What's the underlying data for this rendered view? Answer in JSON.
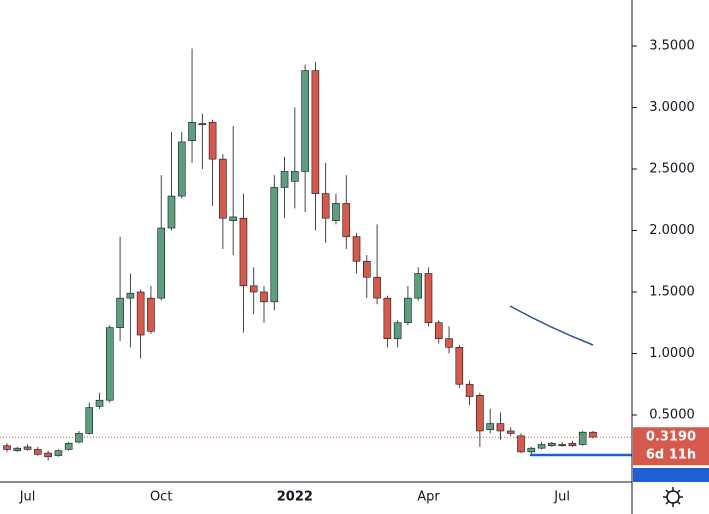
{
  "chart_data": {
    "type": "candlestick",
    "categories": [
      null,
      null,
      "Jul",
      null,
      null,
      null,
      null,
      null,
      null,
      null,
      null,
      null,
      null,
      null,
      null,
      "Oct",
      null,
      null,
      null,
      null,
      null,
      null,
      null,
      null,
      null,
      null,
      null,
      null,
      "2022",
      null,
      null,
      null,
      null,
      null,
      null,
      null,
      null,
      null,
      null,
      null,
      null,
      "Apr",
      null,
      null,
      null,
      null,
      null,
      null,
      null,
      null,
      null,
      null,
      null,
      null,
      "Jul",
      null,
      null,
      null
    ],
    "open": [
      0.25,
      0.21,
      0.24,
      0.22,
      0.19,
      0.17,
      0.22,
      0.28,
      0.35,
      0.57,
      0.62,
      1.21,
      1.45,
      1.5,
      1.45,
      1.45,
      2.02,
      2.28,
      2.73,
      2.86,
      2.88,
      2.58,
      2.08,
      2.1,
      1.55,
      1.5,
      1.42,
      2.35,
      2.4,
      2.48,
      3.3,
      2.3,
      2.08,
      2.22,
      1.95,
      1.75,
      1.62,
      1.45,
      1.12,
      1.25,
      1.45,
      1.65,
      1.25,
      1.12,
      1.05,
      0.75,
      0.66,
      0.38,
      0.43,
      0.37,
      0.33,
      0.2,
      0.23,
      0.25,
      0.25,
      0.27,
      0.26,
      0.36
    ],
    "high": [
      0.27,
      0.24,
      0.26,
      0.24,
      0.21,
      0.22,
      0.28,
      0.37,
      0.6,
      0.68,
      1.23,
      1.95,
      1.65,
      1.52,
      1.55,
      2.45,
      2.8,
      2.8,
      3.48,
      2.95,
      2.9,
      2.62,
      2.85,
      2.3,
      1.7,
      1.55,
      2.45,
      2.6,
      3.0,
      3.35,
      3.37,
      2.55,
      2.3,
      2.45,
      1.98,
      1.8,
      2.05,
      1.47,
      1.27,
      1.55,
      1.7,
      1.7,
      1.27,
      1.22,
      1.07,
      0.78,
      0.68,
      0.55,
      0.52,
      0.4,
      0.35,
      0.24,
      0.28,
      0.28,
      0.28,
      0.29,
      0.37,
      0.37
    ],
    "low": [
      0.2,
      0.2,
      0.21,
      0.17,
      0.13,
      0.16,
      0.21,
      0.27,
      0.34,
      0.55,
      0.6,
      1.1,
      1.05,
      0.96,
      1.16,
      1.43,
      2.0,
      2.26,
      2.55,
      2.5,
      2.2,
      1.85,
      1.8,
      1.17,
      1.32,
      1.25,
      1.35,
      2.1,
      2.18,
      2.15,
      2.0,
      1.9,
      2.05,
      1.85,
      1.65,
      1.45,
      1.4,
      1.05,
      1.05,
      1.23,
      1.43,
      1.22,
      1.08,
      1.0,
      0.72,
      0.58,
      0.24,
      0.35,
      0.3,
      0.33,
      0.19,
      0.18,
      0.22,
      0.24,
      0.24,
      0.24,
      0.25,
      0.31
    ],
    "close": [
      0.22,
      0.23,
      0.22,
      0.18,
      0.16,
      0.21,
      0.27,
      0.35,
      0.56,
      0.62,
      1.21,
      1.45,
      1.49,
      1.15,
      1.18,
      2.02,
      2.28,
      2.72,
      2.88,
      2.87,
      2.58,
      2.1,
      2.11,
      1.55,
      1.5,
      1.42,
      2.35,
      2.48,
      2.48,
      3.3,
      2.3,
      2.1,
      2.22,
      1.95,
      1.75,
      1.62,
      1.45,
      1.12,
      1.25,
      1.45,
      1.65,
      1.25,
      1.12,
      1.05,
      0.75,
      0.65,
      0.37,
      0.43,
      0.37,
      0.35,
      0.2,
      0.23,
      0.26,
      0.27,
      0.26,
      0.25,
      0.36,
      0.32
    ],
    "up_color": "#5d9e7e",
    "down_color": "#d65a4c",
    "ylim": [
      -0.045,
      3.874
    ],
    "yticks": [
      {
        "value": 0.5,
        "label": "0.5000"
      },
      {
        "value": 1.0,
        "label": "1.0000"
      },
      {
        "value": 1.5,
        "label": "1.5000"
      },
      {
        "value": 2.0,
        "label": "2.0000"
      },
      {
        "value": 2.5,
        "label": "2.5000"
      },
      {
        "value": 3.0,
        "label": "3.0000"
      },
      {
        "value": 3.5,
        "label": "3.5000"
      }
    ],
    "last_price": {
      "value": 0.319,
      "label": "0.3190"
    },
    "countdown": "6d 11h"
  }
}
